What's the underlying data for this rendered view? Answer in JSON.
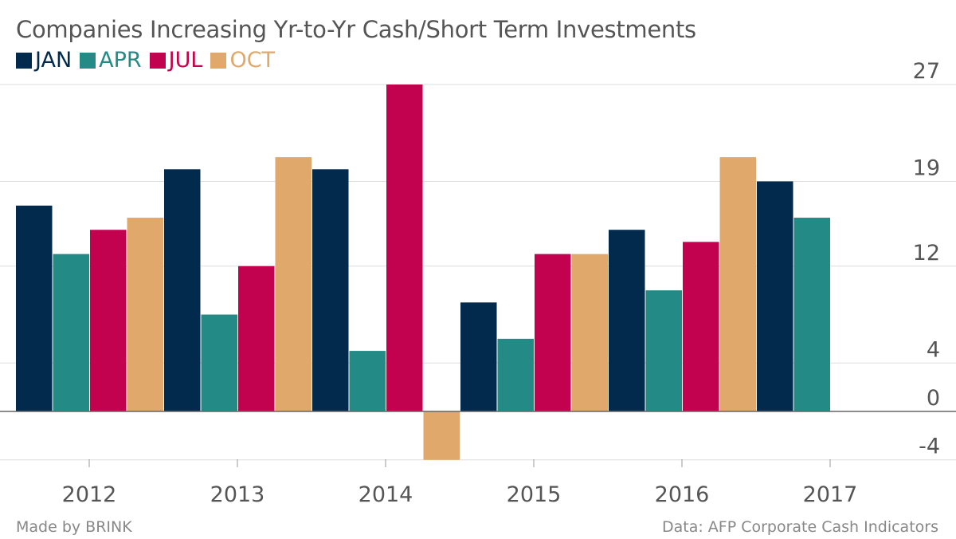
{
  "title": "Companies Increasing Yr-to-Yr Cash/Short Term Investments",
  "footer": {
    "left": "Made by BRINK",
    "right": "Data: AFP Corporate Cash Indicators"
  },
  "colors": {
    "JAN": "#012a4c",
    "APR": "#248a85",
    "JUL": "#c2024f",
    "OCT": "#e0a96b",
    "grid": "#dddddd",
    "zero": "#666666"
  },
  "chart_data": {
    "type": "bar",
    "categories": [
      "2012",
      "2013",
      "2014",
      "2015",
      "2016",
      "2017"
    ],
    "series": [
      {
        "name": "JAN",
        "values": [
          17,
          20,
          20,
          9,
          15,
          19
        ]
      },
      {
        "name": "APR",
        "values": [
          13,
          8,
          5,
          6,
          10,
          16
        ]
      },
      {
        "name": "JUL",
        "values": [
          15,
          12,
          27,
          13,
          14,
          null
        ]
      },
      {
        "name": "OCT",
        "values": [
          16,
          21,
          -4,
          13,
          21,
          null
        ]
      }
    ],
    "y_ticks": [
      "27",
      "19",
      "12",
      "4",
      "0",
      "-4"
    ],
    "ylim": [
      -4,
      27
    ],
    "y_axis_side": "right",
    "grid": true,
    "legend_position": "top-left"
  }
}
